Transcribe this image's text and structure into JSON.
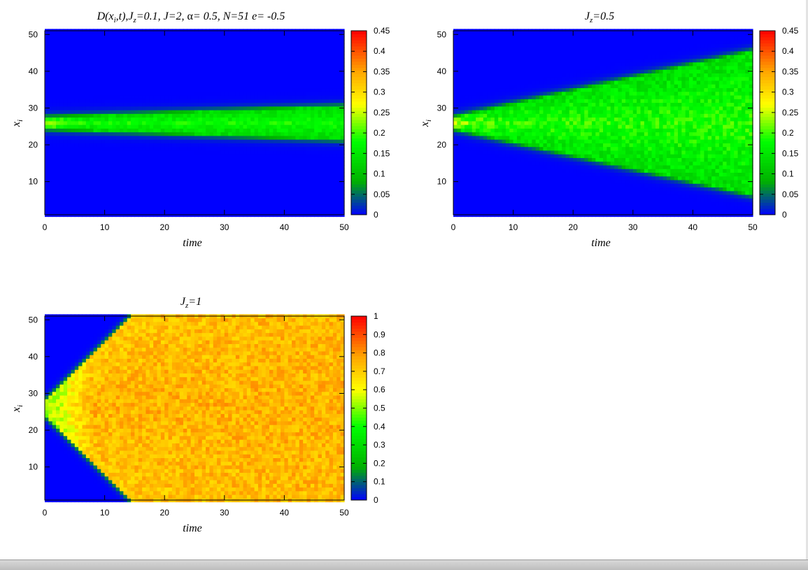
{
  "chart_data": [
    {
      "type": "heatmap",
      "title_parts": {
        "p1": "D(x",
        "sub1": "i",
        "p2": ",t),J",
        "sub2": "z",
        "p3": "=0.1,  J=2, ",
        "alpha": "α",
        "p4": "= 0.5, N=51 e= -0.5"
      },
      "xlabel": "time",
      "ylabel": {
        "main": "x",
        "sub": "i"
      },
      "xlim": [
        0,
        50
      ],
      "ylim": [
        1,
        51
      ],
      "xticks": [
        0,
        10,
        20,
        30,
        40,
        50
      ],
      "yticks": [
        10,
        20,
        30,
        40,
        50
      ],
      "colorbar": {
        "range": [
          0,
          0.45
        ],
        "ticks": [
          "0",
          "0.05",
          "0.1",
          "0.15",
          "0.2",
          "0.25",
          "0.3",
          "0.35",
          "0.4",
          "0.45"
        ]
      },
      "spread": {
        "x0": 0,
        "halfwidth0": 1.5,
        "rate": 0.06,
        "peak0": 0.24,
        "tail": 0.18,
        "jitter": 0.02
      }
    },
    {
      "type": "heatmap",
      "title_parts": {
        "p1": "J",
        "sub1": "z",
        "p2": "=0.5"
      },
      "xlabel": "time",
      "ylabel": {
        "main": "x",
        "sub": "i"
      },
      "xlim": [
        0,
        50
      ],
      "ylim": [
        1,
        51
      ],
      "xticks": [
        0,
        10,
        20,
        30,
        40,
        50
      ],
      "yticks": [
        10,
        20,
        30,
        40,
        50
      ],
      "colorbar": {
        "range": [
          0,
          0.45
        ],
        "ticks": [
          "0",
          "0.05",
          "0.1",
          "0.15",
          "0.2",
          "0.25",
          "0.3",
          "0.35",
          "0.4",
          "0.45"
        ]
      },
      "spread": {
        "x0": 0,
        "halfwidth0": 1.5,
        "rate": 0.36,
        "peak0": 0.24,
        "tail": 0.19,
        "jitter": 0.03
      }
    },
    {
      "type": "heatmap",
      "title_parts": {
        "p1": "J",
        "sub1": "z",
        "p2": "=1"
      },
      "xlabel": "time",
      "ylabel": {
        "main": "x",
        "sub": "i"
      },
      "xlim": [
        0,
        50
      ],
      "ylim": [
        1,
        51
      ],
      "xticks": [
        0,
        10,
        20,
        30,
        40,
        50
      ],
      "yticks": [
        10,
        20,
        30,
        40,
        50
      ],
      "colorbar": {
        "range": [
          0,
          1
        ],
        "ticks": [
          "0",
          "0.1",
          "0.2",
          "0.3",
          "0.4",
          "0.5",
          "0.6",
          "0.7",
          "0.8",
          "0.9",
          "1"
        ]
      },
      "spread": {
        "x0": 0,
        "halfwidth0": 1.5,
        "rate": 1.6,
        "peak0": 0.5,
        "tail": 0.75,
        "jitter": 0.07
      }
    }
  ],
  "colormap": [
    "#0000ff",
    "#00b000",
    "#00ff00",
    "#ffff00",
    "#ffa500",
    "#ff0000"
  ],
  "colormap_stops": [
    0,
    0.18,
    0.4,
    0.6,
    0.78,
    1
  ]
}
